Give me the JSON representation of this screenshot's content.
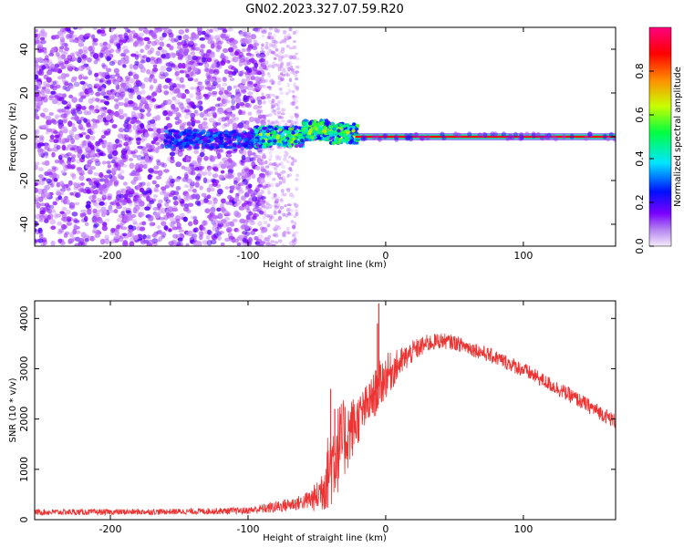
{
  "title": "GN02.2023.327.07.59.R20",
  "chart_data": [
    {
      "type": "heatmap",
      "xlabel": "Height of straight line (km)",
      "ylabel": "Frequency (Hz)",
      "xlim": [
        -255,
        167
      ],
      "ylim": [
        -50,
        50
      ],
      "x_ticks": [
        -200,
        -100,
        0,
        100
      ],
      "y_ticks": [
        -40,
        -20,
        0,
        20,
        40
      ],
      "colorbar": {
        "label": "Normalized spectral amplitude",
        "range": [
          0,
          1
        ],
        "ticks": [
          0.0,
          0.2,
          0.4,
          0.6,
          0.8
        ],
        "colormap": [
          "#f0e6f8",
          "#8800ff",
          "#0000ff",
          "#00e5ff",
          "#00ff40",
          "#c8ff00",
          "#ff8c00",
          "#ff0000",
          "#ff0080"
        ]
      },
      "regions": [
        {
          "x_range": [
            -255,
            -90
          ],
          "freq_range": [
            -50,
            50
          ],
          "amplitude": "low, scattered noise (0.1-0.3)"
        },
        {
          "x_range": [
            -90,
            -65
          ],
          "freq_range": [
            -50,
            50
          ],
          "amplitude": "faint scattered noise"
        },
        {
          "x_range": [
            -95,
            -20
          ],
          "freq_range": [
            -6,
            8
          ],
          "amplitude": "signal emerging (0.3-0.8)"
        },
        {
          "x_range": [
            -20,
            167
          ],
          "freq_range": [
            -1,
            1
          ],
          "amplitude": "strong narrow line near 0 Hz (0.8-1.0)"
        }
      ]
    },
    {
      "type": "line",
      "xlabel": "Height of straight line (km)",
      "ylabel": "SNR (10 * v/v)",
      "xlim": [
        -255,
        167
      ],
      "ylim": [
        0,
        4350
      ],
      "x_ticks": [
        -200,
        -100,
        0,
        100
      ],
      "y_ticks": [
        0,
        1000,
        2000,
        3000,
        4000
      ],
      "color": "#ee3333",
      "envelope": {
        "x": [
          -255,
          -200,
          -150,
          -100,
          -80,
          -60,
          -50,
          -45,
          -40,
          -35,
          -30,
          -25,
          -20,
          -15,
          -10,
          -5,
          0,
          10,
          20,
          30,
          40,
          50,
          60,
          80,
          100,
          120,
          140,
          167
        ],
        "mid": [
          150,
          150,
          160,
          180,
          250,
          350,
          450,
          700,
          1100,
          1400,
          1600,
          1800,
          2000,
          2200,
          2400,
          2650,
          2850,
          3100,
          3350,
          3500,
          3560,
          3520,
          3430,
          3220,
          2980,
          2680,
          2380,
          1950
        ],
        "amp": [
          60,
          60,
          60,
          70,
          120,
          150,
          300,
          550,
          900,
          900,
          800,
          650,
          500,
          450,
          450,
          500,
          450,
          300,
          220,
          180,
          160,
          150,
          150,
          150,
          150,
          150,
          150,
          150
        ]
      },
      "spikes": [
        {
          "x": -5,
          "y": 4300
        },
        {
          "x": -6,
          "y": 3900
        },
        {
          "x": -40,
          "y": 2600
        },
        {
          "x": -37,
          "y": 2200
        }
      ]
    }
  ]
}
